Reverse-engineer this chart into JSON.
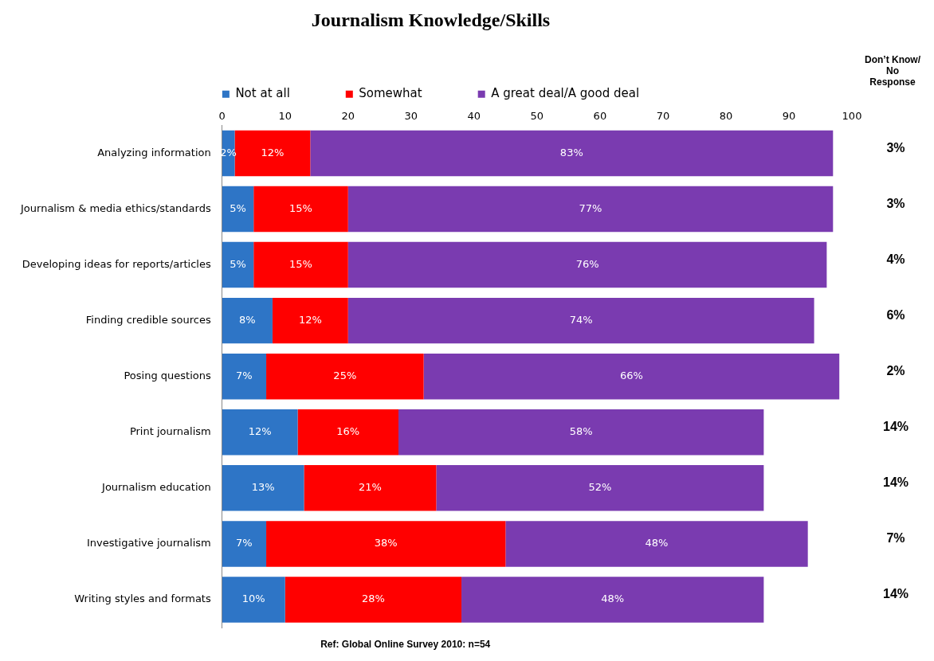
{
  "chart_data": {
    "type": "bar",
    "orientation": "horizontal",
    "stacked": true,
    "title": "Journalism Knowledge/Skills",
    "categories": [
      "Analyzing information",
      "Journalism & media ethics/standards",
      "Developing ideas for reports/articles",
      "Finding credible sources",
      "Posing questions",
      "Print journalism",
      "Journalism education",
      "Investigative journalism",
      "Writing styles and formats"
    ],
    "series": [
      {
        "name": "Not at all",
        "color": "#2e75c6",
        "values": [
          2,
          5,
          5,
          8,
          7,
          12,
          13,
          7,
          10
        ],
        "value_labels": [
          "2%",
          "5%",
          "5%",
          "8%",
          "7%",
          "12%",
          "13%",
          "7%",
          "10%"
        ]
      },
      {
        "name": "Somewhat",
        "color": "#ff0000",
        "values": [
          12,
          15,
          15,
          12,
          25,
          16,
          21,
          38,
          28
        ],
        "value_labels": [
          "12%",
          "15%",
          "15%",
          "12%",
          "25%",
          "16%",
          "21%",
          "38%",
          "28%"
        ]
      },
      {
        "name": "A great deal/A good deal",
        "color": "#7a3bb0",
        "values": [
          83,
          77,
          76,
          74,
          66,
          58,
          52,
          48,
          48
        ],
        "value_labels": [
          "83%",
          "77%",
          "76%",
          "74%",
          "66%",
          "58%",
          "52%",
          "48%",
          "48%"
        ]
      }
    ],
    "xlim": [
      0,
      100
    ],
    "xticks": [
      0,
      10,
      20,
      30,
      40,
      50,
      60,
      70,
      80,
      90,
      100
    ],
    "grid": false,
    "legend": "top",
    "annotations": [
      "Don’t Know/ No Response",
      "3%",
      "3%",
      "4%",
      "6%",
      "2%",
      "14%",
      "14%",
      "7%",
      "14%",
      "Ref: Global Online Survey 2010: n=54"
    ]
  }
}
